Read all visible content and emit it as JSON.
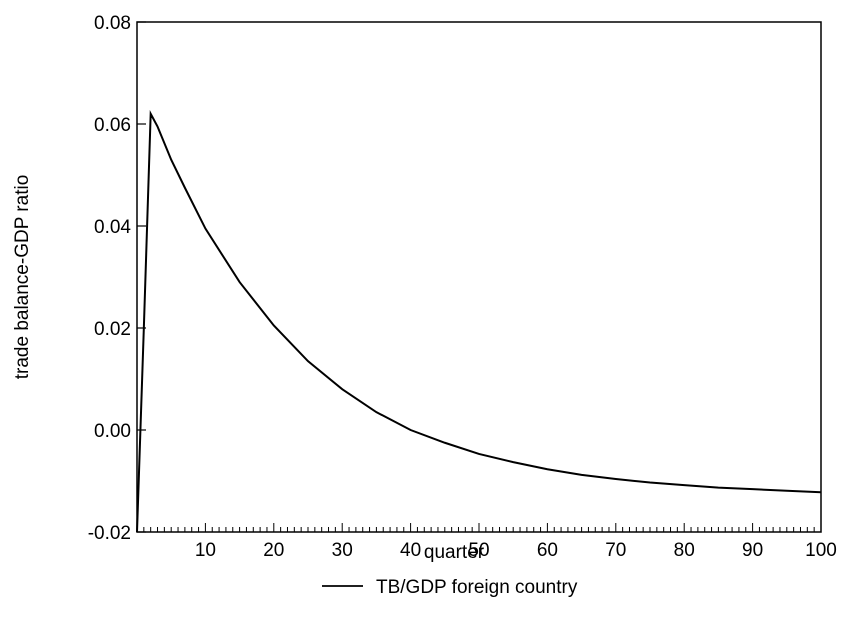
{
  "chart_data": {
    "type": "line",
    "title": "",
    "xlabel": "quarter",
    "ylabel": "trade balance-GDP ratio",
    "xlim": [
      0,
      100
    ],
    "ylim": [
      -0.02,
      0.08
    ],
    "x_ticks": [
      10,
      20,
      30,
      40,
      50,
      60,
      70,
      80,
      90,
      100
    ],
    "y_ticks": [
      "0.08",
      "0.06",
      "0.04",
      "0.02",
      "0.00",
      "-0.02"
    ],
    "grid": false,
    "legend_position": "bottom",
    "series": [
      {
        "name": "TB/GDP foreign country",
        "color": "#000000",
        "x": [
          0,
          1,
          2,
          3,
          5,
          7,
          10,
          15,
          20,
          25,
          30,
          35,
          40,
          45,
          50,
          55,
          60,
          65,
          70,
          75,
          80,
          85,
          90,
          95,
          100
        ],
        "y": [
          -0.02,
          0.02,
          0.062,
          0.0595,
          0.053,
          0.0475,
          0.0395,
          0.029,
          0.0205,
          0.0135,
          0.008,
          0.0035,
          0.0,
          -0.0025,
          -0.0047,
          -0.0063,
          -0.0077,
          -0.0088,
          -0.0096,
          -0.0103,
          -0.0108,
          -0.0113,
          -0.0116,
          -0.0119,
          -0.0122
        ]
      }
    ]
  }
}
